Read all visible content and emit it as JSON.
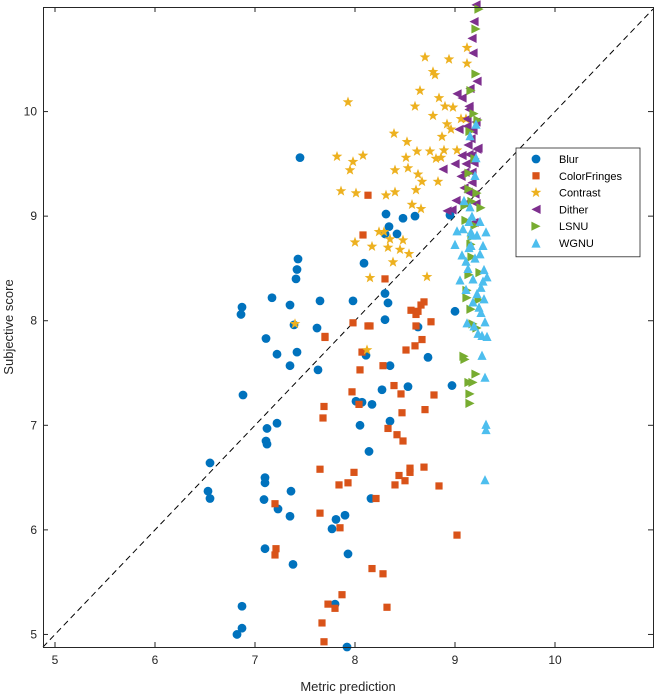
{
  "chart_data": {
    "type": "scatter",
    "title": "",
    "xlabel": "Metric prediction",
    "ylabel": "Subjective score",
    "xlim": [
      4.88,
      10.98
    ],
    "ylim": [
      4.88,
      11.0
    ],
    "xticks": [
      "5",
      "6",
      "7",
      "8",
      "9",
      "10"
    ],
    "yticks": [
      "5",
      "6",
      "7",
      "8",
      "9",
      "10"
    ],
    "grid": false,
    "legend_position": "right",
    "reference_line": {
      "style": "dashed",
      "x": [
        4.88,
        10.98
      ],
      "y": [
        4.88,
        10.98
      ]
    },
    "series": [
      {
        "name": "Blur",
        "marker": "circle",
        "color": "#0072BD",
        "points": [
          [
            6.55,
            6.64
          ],
          [
            6.53,
            6.37
          ],
          [
            6.55,
            6.3
          ],
          [
            6.82,
            5.0
          ],
          [
            6.87,
            5.27
          ],
          [
            6.87,
            5.06
          ],
          [
            6.86,
            8.06
          ],
          [
            6.87,
            8.13
          ],
          [
            6.88,
            7.29
          ],
          [
            7.11,
            7.83
          ],
          [
            7.12,
            6.97
          ],
          [
            7.11,
            6.85
          ],
          [
            7.12,
            6.82
          ],
          [
            7.1,
            6.5
          ],
          [
            7.1,
            6.45
          ],
          [
            7.09,
            6.29
          ],
          [
            7.1,
            5.82
          ],
          [
            7.17,
            8.22
          ],
          [
            7.22,
            7.68
          ],
          [
            7.22,
            7.02
          ],
          [
            7.23,
            6.2
          ],
          [
            7.35,
            8.15
          ],
          [
            7.35,
            7.57
          ],
          [
            7.36,
            6.37
          ],
          [
            7.35,
            6.13
          ],
          [
            7.38,
            5.67
          ],
          [
            7.39,
            7.96
          ],
          [
            7.41,
            8.4
          ],
          [
            7.42,
            8.49
          ],
          [
            7.43,
            8.59
          ],
          [
            7.42,
            7.7
          ],
          [
            7.45,
            9.56
          ],
          [
            7.62,
            7.93
          ],
          [
            7.63,
            7.53
          ],
          [
            7.65,
            8.19
          ],
          [
            7.77,
            6.01
          ],
          [
            7.81,
            6.1
          ],
          [
            7.8,
            5.29
          ],
          [
            7.9,
            6.14
          ],
          [
            7.92,
            4.88
          ],
          [
            7.93,
            5.77
          ],
          [
            7.98,
            8.19
          ],
          [
            8.01,
            7.23
          ],
          [
            8.05,
            7.0
          ],
          [
            8.07,
            7.22
          ],
          [
            8.09,
            8.55
          ],
          [
            8.11,
            7.67
          ],
          [
            8.14,
            6.75
          ],
          [
            8.17,
            7.2
          ],
          [
            8.16,
            6.3
          ],
          [
            8.27,
            7.34
          ],
          [
            8.3,
            8.01
          ],
          [
            8.3,
            8.26
          ],
          [
            8.31,
            9.02
          ],
          [
            8.3,
            8.83
          ],
          [
            8.34,
            8.9
          ],
          [
            8.33,
            8.17
          ],
          [
            8.35,
            7.04
          ],
          [
            8.35,
            7.57
          ],
          [
            8.42,
            8.83
          ],
          [
            8.48,
            8.98
          ],
          [
            8.53,
            7.37
          ],
          [
            8.6,
            9.0
          ],
          [
            8.63,
            7.94
          ],
          [
            8.73,
            7.65
          ],
          [
            8.97,
            7.38
          ],
          [
            9.0,
            8.09
          ],
          [
            8.95,
            9.01
          ]
        ]
      },
      {
        "name": "ColorFringes",
        "marker": "square",
        "color": "#D95319",
        "points": [
          [
            7.2,
            5.76
          ],
          [
            7.21,
            5.82
          ],
          [
            7.2,
            6.25
          ],
          [
            7.65,
            6.58
          ],
          [
            7.65,
            6.16
          ],
          [
            7.67,
            5.11
          ],
          [
            7.69,
            4.93
          ],
          [
            7.68,
            7.07
          ],
          [
            7.69,
            7.18
          ],
          [
            7.7,
            7.85
          ],
          [
            7.7,
            7.84
          ],
          [
            7.73,
            5.29
          ],
          [
            7.8,
            5.25
          ],
          [
            7.84,
            6.43
          ],
          [
            7.87,
            5.38
          ],
          [
            7.85,
            6.02
          ],
          [
            7.93,
            6.45
          ],
          [
            7.97,
            7.32
          ],
          [
            7.98,
            7.98
          ],
          [
            7.99,
            6.55
          ],
          [
            8.04,
            7.2
          ],
          [
            8.05,
            7.53
          ],
          [
            8.07,
            7.7
          ],
          [
            8.08,
            8.82
          ],
          [
            8.13,
            9.2
          ],
          [
            8.13,
            7.95
          ],
          [
            8.15,
            7.95
          ],
          [
            8.17,
            5.63
          ],
          [
            8.21,
            6.3
          ],
          [
            8.28,
            5.58
          ],
          [
            8.3,
            8.4
          ],
          [
            8.28,
            7.57
          ],
          [
            8.32,
            5.26
          ],
          [
            8.33,
            6.97
          ],
          [
            8.39,
            7.38
          ],
          [
            8.4,
            6.43
          ],
          [
            8.42,
            6.91
          ],
          [
            8.44,
            6.52
          ],
          [
            8.46,
            7.3
          ],
          [
            8.47,
            7.12
          ],
          [
            8.48,
            6.85
          ],
          [
            8.5,
            6.47
          ],
          [
            8.51,
            7.72
          ],
          [
            8.55,
            6.55
          ],
          [
            8.55,
            6.59
          ],
          [
            8.56,
            8.1
          ],
          [
            8.6,
            7.76
          ],
          [
            8.61,
            7.95
          ],
          [
            8.61,
            8.06
          ],
          [
            8.63,
            8.09
          ],
          [
            8.66,
            8.15
          ],
          [
            8.69,
            8.18
          ],
          [
            8.67,
            7.82
          ],
          [
            8.7,
            7.15
          ],
          [
            8.69,
            6.6
          ],
          [
            8.76,
            7.99
          ],
          [
            8.79,
            7.29
          ],
          [
            8.84,
            6.42
          ],
          [
            9.02,
            5.95
          ]
        ]
      },
      {
        "name": "Contrast",
        "marker": "star",
        "color": "#EDB120",
        "points": [
          [
            7.4,
            7.97
          ],
          [
            7.82,
            9.57
          ],
          [
            7.86,
            9.24
          ],
          [
            7.93,
            10.09
          ],
          [
            7.95,
            9.44
          ],
          [
            7.98,
            9.52
          ],
          [
            8.0,
            8.75
          ],
          [
            8.01,
            9.22
          ],
          [
            8.08,
            9.58
          ],
          [
            8.12,
            7.72
          ],
          [
            8.15,
            8.41
          ],
          [
            8.17,
            8.71
          ],
          [
            8.24,
            8.85
          ],
          [
            8.29,
            8.85
          ],
          [
            8.31,
            9.2
          ],
          [
            8.33,
            8.7
          ],
          [
            8.35,
            8.78
          ],
          [
            8.38,
            8.56
          ],
          [
            8.39,
            9.79
          ],
          [
            8.4,
            9.44
          ],
          [
            8.4,
            9.23
          ],
          [
            8.45,
            8.68
          ],
          [
            8.48,
            8.77
          ],
          [
            8.52,
            9.71
          ],
          [
            8.51,
            9.56
          ],
          [
            8.54,
            8.64
          ],
          [
            8.53,
            9.46
          ],
          [
            8.57,
            9.11
          ],
          [
            8.6,
            10.05
          ],
          [
            8.61,
            9.25
          ],
          [
            8.62,
            9.62
          ],
          [
            8.63,
            9.4
          ],
          [
            8.65,
            10.2
          ],
          [
            8.66,
            9.07
          ],
          [
            8.67,
            9.33
          ],
          [
            8.7,
            10.52
          ],
          [
            8.72,
            8.42
          ],
          [
            8.75,
            9.62
          ],
          [
            8.78,
            9.96
          ],
          [
            8.78,
            10.38
          ],
          [
            8.8,
            10.35
          ],
          [
            8.81,
            9.55
          ],
          [
            8.83,
            9.33
          ],
          [
            8.84,
            10.13
          ],
          [
            8.86,
            9.56
          ],
          [
            8.87,
            9.76
          ],
          [
            8.89,
            9.63
          ],
          [
            8.9,
            10.05
          ],
          [
            8.92,
            9.88
          ],
          [
            8.94,
            10.5
          ],
          [
            8.96,
            9.83
          ],
          [
            8.98,
            10.04
          ],
          [
            9.02,
            9.63
          ],
          [
            9.06,
            9.93
          ],
          [
            9.11,
            9.93
          ],
          [
            9.12,
            10.61
          ],
          [
            9.12,
            10.46
          ]
        ]
      },
      {
        "name": "Dither",
        "marker": "triangle-left",
        "color": "#7E2F8E",
        "points": [
          [
            8.88,
            9.45
          ],
          [
            8.92,
            9.05
          ],
          [
            8.97,
            9.06
          ],
          [
            9.0,
            9.5
          ],
          [
            9.01,
            9.15
          ],
          [
            9.02,
            10.17
          ],
          [
            9.04,
            9.83
          ],
          [
            9.06,
            9.38
          ],
          [
            9.07,
            9.58
          ],
          [
            9.07,
            10.13
          ],
          [
            9.09,
            9.27
          ],
          [
            9.1,
            9.12
          ],
          [
            9.1,
            9.42
          ],
          [
            9.11,
            9.5
          ],
          [
            9.12,
            9.86
          ],
          [
            9.12,
            9.93
          ],
          [
            9.13,
            9.68
          ],
          [
            9.14,
            9.59
          ],
          [
            9.13,
            9.23
          ],
          [
            9.14,
            10.02
          ],
          [
            9.15,
            10.22
          ],
          [
            9.14,
            10.05
          ],
          [
            9.16,
            9.74
          ],
          [
            9.17,
            9.58
          ],
          [
            9.17,
            9.42
          ],
          [
            9.17,
            9.32
          ],
          [
            9.17,
            10.7
          ],
          [
            9.18,
            10.56
          ],
          [
            9.19,
            10.86
          ],
          [
            9.18,
            9.82
          ],
          [
            9.19,
            9.51
          ],
          [
            9.2,
            9.21
          ],
          [
            9.21,
            9.9
          ],
          [
            9.21,
            9.12
          ],
          [
            9.19,
            8.94
          ],
          [
            9.22,
            9.64
          ],
          [
            9.21,
            11.02
          ],
          [
            9.22,
            10.29
          ],
          [
            9.23,
            9.65
          ]
        ]
      },
      {
        "name": "LSNU",
        "marker": "triangle-right",
        "color": "#77AC30",
        "points": [
          [
            9.11,
            8.96
          ],
          [
            9.1,
            9.1
          ],
          [
            9.09,
            7.66
          ],
          [
            9.1,
            7.63
          ],
          [
            9.12,
            8.22
          ],
          [
            9.12,
            8.29
          ],
          [
            9.14,
            9.26
          ],
          [
            9.14,
            9.41
          ],
          [
            9.14,
            8.44
          ],
          [
            9.14,
            7.41
          ],
          [
            9.15,
            7.21
          ],
          [
            9.15,
            7.3
          ],
          [
            9.16,
            8.11
          ],
          [
            9.16,
            8.73
          ],
          [
            9.15,
            9.81
          ],
          [
            9.16,
            10.2
          ],
          [
            9.17,
            8.8
          ],
          [
            9.17,
            8.61
          ],
          [
            9.17,
            9.14
          ],
          [
            9.18,
            7.97
          ],
          [
            9.18,
            7.41
          ],
          [
            9.19,
            9.98
          ],
          [
            9.2,
            9.55
          ],
          [
            9.2,
            8.91
          ],
          [
            9.21,
            10.36
          ],
          [
            9.21,
            10.79
          ],
          [
            9.21,
            7.49
          ],
          [
            9.22,
            7.93
          ],
          [
            9.22,
            9.22
          ],
          [
            9.23,
            9.92
          ],
          [
            9.24,
            10.98
          ],
          [
            9.24,
            8.2
          ],
          [
            9.25,
            8.46
          ],
          [
            9.26,
            9.08
          ]
        ]
      },
      {
        "name": "WGNU",
        "marker": "triangle-up",
        "color": "#4DBEEE",
        "points": [
          [
            9.0,
            8.73
          ],
          [
            9.02,
            8.86
          ],
          [
            9.05,
            8.39
          ],
          [
            9.07,
            8.63
          ],
          [
            9.08,
            8.88
          ],
          [
            9.09,
            9.15
          ],
          [
            9.11,
            8.57
          ],
          [
            9.11,
            8.3
          ],
          [
            9.12,
            7.98
          ],
          [
            9.13,
            8.5
          ],
          [
            9.14,
            8.95
          ],
          [
            9.14,
            8.7
          ],
          [
            9.15,
            9.77
          ],
          [
            9.15,
            9.09
          ],
          [
            9.16,
            8.85
          ],
          [
            9.16,
            8.72
          ],
          [
            9.17,
            9.0
          ],
          [
            9.17,
            8.82
          ],
          [
            9.18,
            8.4
          ],
          [
            9.18,
            8.18
          ],
          [
            9.19,
            7.95
          ],
          [
            9.2,
            8.6
          ],
          [
            9.2,
            9.39
          ],
          [
            9.21,
            9.56
          ],
          [
            9.21,
            9.88
          ],
          [
            9.22,
            8.82
          ],
          [
            9.22,
            8.26
          ],
          [
            9.23,
            7.88
          ],
          [
            9.24,
            8.13
          ],
          [
            9.25,
            8.95
          ],
          [
            9.25,
            8.64
          ],
          [
            9.26,
            8.32
          ],
          [
            9.26,
            8.08
          ],
          [
            9.27,
            7.86
          ],
          [
            9.27,
            7.67
          ],
          [
            9.28,
            8.38
          ],
          [
            9.28,
            8.72
          ],
          [
            9.29,
            8.49
          ],
          [
            9.29,
            8.21
          ],
          [
            9.3,
            7.99
          ],
          [
            9.3,
            7.46
          ],
          [
            9.31,
            7.01
          ],
          [
            9.31,
            6.96
          ],
          [
            9.3,
            6.48
          ],
          [
            9.31,
            8.85
          ],
          [
            9.32,
            8.42
          ],
          [
            9.32,
            7.85
          ]
        ]
      }
    ]
  }
}
